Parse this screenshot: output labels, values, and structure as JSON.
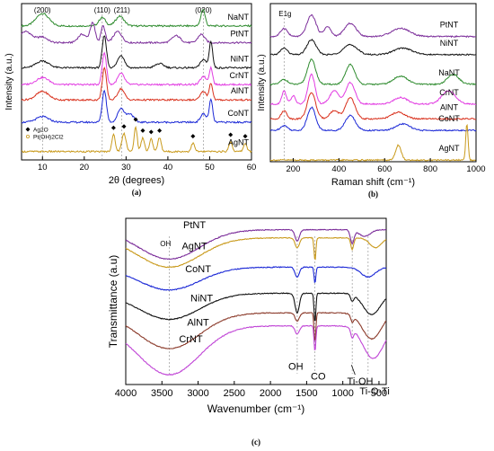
{
  "chart_data": [
    {
      "type": "line",
      "panel_label": "(a)",
      "xlabel": "2θ (degrees)",
      "ylabel": "Intensity (a.u.)",
      "xlim": [
        5,
        60
      ],
      "xticks": [
        10,
        20,
        30,
        40,
        50,
        60
      ],
      "peak_labels": [
        {
          "x": 10,
          "label": "(200)"
        },
        {
          "x": 24.3,
          "label": "(110)"
        },
        {
          "x": 29,
          "label": "(211)"
        },
        {
          "x": 48.5,
          "label": "(020)"
        }
      ],
      "legend": {
        "placement": "bottom-left",
        "entries": [
          "Ag2O",
          "Pt(OH)2Cl2"
        ]
      },
      "series": [
        {
          "name": "NaNT",
          "color": "#2e8b2e",
          "offset": 9.6,
          "peaks": [
            [
              10,
              0.9,
              1.5
            ],
            [
              24.3,
              0.6,
              0.8
            ],
            [
              28.5,
              0.7,
              1
            ],
            [
              48.4,
              1.2,
              0.5
            ]
          ]
        },
        {
          "name": "PtNT",
          "color": "#7b2d9a",
          "offset": 8.4,
          "peaks": [
            [
              6,
              0.8,
              1.5
            ],
            [
              10,
              0.4,
              1.2
            ],
            [
              19.5,
              0.6,
              1
            ],
            [
              22,
              1.4,
              0.6
            ],
            [
              24.5,
              1.2,
              0.5
            ],
            [
              28,
              0.8,
              1
            ],
            [
              42,
              0.5,
              1
            ],
            [
              48,
              0.6,
              0.8
            ]
          ]
        },
        {
          "name": "NiNT",
          "color": "#111111",
          "offset": 6.6,
          "peaks": [
            [
              10,
              0.5,
              1.5
            ],
            [
              24.8,
              2.3,
              0.5
            ],
            [
              28.8,
              0.9,
              0.8
            ],
            [
              38,
              0.3,
              1
            ],
            [
              48.5,
              0.6,
              0.7
            ],
            [
              50.3,
              1.9,
              0.4
            ]
          ]
        },
        {
          "name": "CrNT",
          "color": "#e23ce2",
          "offset": 5.4,
          "peaks": [
            [
              10,
              0.5,
              1.5
            ],
            [
              24.8,
              2.3,
              0.5
            ],
            [
              28.8,
              0.8,
              0.8
            ],
            [
              48.5,
              0.6,
              0.7
            ],
            [
              50.3,
              1.2,
              0.4
            ]
          ]
        },
        {
          "name": "AlNT",
          "color": "#d9301c",
          "offset": 4.3,
          "peaks": [
            [
              10,
              0.6,
              1.5
            ],
            [
              24.8,
              2.3,
              0.5
            ],
            [
              28.8,
              0.8,
              0.8
            ],
            [
              48.5,
              0.6,
              0.7
            ],
            [
              50.3,
              1.2,
              0.4
            ]
          ]
        },
        {
          "name": "CoNT",
          "color": "#1b28d6",
          "offset": 2.7,
          "peaks": [
            [
              10,
              0.4,
              1.5
            ],
            [
              24.8,
              2.3,
              0.5
            ],
            [
              28.8,
              1.0,
              0.8
            ],
            [
              31,
              0.6,
              0.8
            ],
            [
              48.5,
              0.6,
              0.7
            ],
            [
              50.3,
              1.6,
              0.4
            ]
          ]
        },
        {
          "name": "AgNT",
          "color": "#c99a1c",
          "offset": 0.6,
          "peaks": [
            [
              27,
              1.2,
              0.4
            ],
            [
              29.5,
              1.3,
              0.5
            ],
            [
              32.3,
              1.8,
              0.35
            ],
            [
              34,
              1.0,
              0.4
            ],
            [
              36,
              0.9,
              0.4
            ],
            [
              38,
              1.0,
              0.4
            ],
            [
              46,
              0.6,
              0.4
            ],
            [
              55,
              0.7,
              0.4
            ],
            [
              58.5,
              0.6,
              0.4
            ]
          ]
        }
      ]
    },
    {
      "type": "line",
      "panel_label": "(b)",
      "xlabel": "Raman shift (cm⁻¹)",
      "ylabel": "Intensity (a.u.)",
      "xlim": [
        100,
        1000
      ],
      "xticks": [
        200,
        400,
        600,
        800,
        1000
      ],
      "annotation": {
        "x": 160,
        "label": "E1g"
      },
      "series": [
        {
          "name": "PtNT",
          "color": "#7b2d9a",
          "offset": 7.6,
          "peaks": [
            [
              160,
              0.5,
              15
            ],
            [
              280,
              1.3,
              20
            ],
            [
              350,
              0.6,
              15
            ],
            [
              450,
              0.8,
              25
            ],
            [
              670,
              0.5,
              40
            ]
          ]
        },
        {
          "name": "NiNT",
          "color": "#111111",
          "offset": 6.5,
          "peaks": [
            [
              160,
              0.4,
              15
            ],
            [
              280,
              0.9,
              20
            ],
            [
              450,
              0.6,
              30
            ],
            [
              680,
              0.4,
              40
            ]
          ]
        },
        {
          "name": "NaNT",
          "color": "#2e8b2e",
          "offset": 4.7,
          "peaks": [
            [
              160,
              0.3,
              15
            ],
            [
              280,
              1.5,
              18
            ],
            [
              450,
              1.2,
              20
            ],
            [
              670,
              0.5,
              30
            ],
            [
              900,
              0.6,
              25
            ]
          ]
        },
        {
          "name": "CrNT",
          "color": "#e23ce2",
          "offset": 3.5,
          "peaks": [
            [
              160,
              0.8,
              10
            ],
            [
              200,
              0.5,
              10
            ],
            [
              280,
              1.8,
              15
            ],
            [
              380,
              0.8,
              20
            ],
            [
              450,
              1.3,
              20
            ],
            [
              670,
              0.4,
              30
            ],
            [
              880,
              0.8,
              30
            ]
          ]
        },
        {
          "name": "AlNT",
          "color": "#d9301c",
          "offset": 2.6,
          "peaks": [
            [
              160,
              0.5,
              12
            ],
            [
              280,
              1.6,
              18
            ],
            [
              380,
              0.5,
              20
            ],
            [
              450,
              1.3,
              20
            ],
            [
              660,
              0.4,
              30
            ]
          ]
        },
        {
          "name": "CoNT",
          "color": "#1b28d6",
          "offset": 1.9,
          "peaks": [
            [
              160,
              0.3,
              15
            ],
            [
              280,
              1.4,
              18
            ],
            [
              450,
              0.9,
              22
            ],
            [
              680,
              0.4,
              30
            ]
          ]
        },
        {
          "name": "AgNT",
          "color": "#c99a1c",
          "offset": 0.1,
          "peaks": [
            [
              660,
              0.9,
              12
            ],
            [
              960,
              2.2,
              5
            ]
          ]
        }
      ]
    },
    {
      "type": "line",
      "panel_label": "(c)",
      "xlabel": "Wavenumber (cm⁻¹)",
      "ylabel": "Transmittance (a.u)",
      "xlim": [
        4000,
        400
      ],
      "xticks": [
        4000,
        3500,
        3000,
        2500,
        2000,
        1500,
        1000,
        500
      ],
      "annotations": [
        {
          "x": 3500,
          "label": "OH"
        },
        {
          "x": 1630,
          "label": "OH"
        },
        {
          "x": 1385,
          "label": "CO"
        },
        {
          "x": 870,
          "label": "Ti-OH"
        },
        {
          "x": 560,
          "label": "Ti-O-Ti"
        }
      ],
      "reference_lines": [
        3400,
        1630,
        1385,
        870,
        650
      ],
      "series": [
        {
          "name": "PtNT",
          "color": "#7b2d9a",
          "base": 9.5,
          "offset": 0,
          "dips": [
            [
              3400,
              1.8,
              420
            ],
            [
              1630,
              0.7,
              30
            ],
            [
              870,
              0.8,
              25
            ],
            [
              700,
              0.4,
              80
            ]
          ]
        },
        {
          "name": "AgNT",
          "color": "#c99a1c",
          "base": 9.0,
          "offset": -0.8,
          "dips": [
            [
              3400,
              1.8,
              420
            ],
            [
              1630,
              0.6,
              30
            ],
            [
              1385,
              1.4,
              12
            ],
            [
              870,
              0.7,
              20
            ],
            [
              550,
              0.6,
              80
            ]
          ]
        },
        {
          "name": "CoNT",
          "color": "#1b28d6",
          "base": 7.2,
          "offset": -1.6,
          "dips": [
            [
              3400,
              1.4,
              420
            ],
            [
              1630,
              0.6,
              30
            ],
            [
              1385,
              1.0,
              12
            ],
            [
              650,
              0.6,
              100
            ]
          ]
        },
        {
          "name": "NiNT",
          "color": "#111111",
          "base": 5.6,
          "offset": -3.0,
          "dips": [
            [
              3400,
              1.6,
              420
            ],
            [
              1630,
              1.2,
              30
            ],
            [
              1385,
              1.8,
              12
            ],
            [
              870,
              0.4,
              20
            ],
            [
              600,
              1.3,
              120
            ]
          ]
        },
        {
          "name": "AlNT",
          "color": "#8b3a2a",
          "base": 4.4,
          "offset": -4.2,
          "dips": [
            [
              3400,
              2.2,
              420
            ],
            [
              1630,
              0.5,
              30
            ],
            [
              1385,
              1.8,
              12
            ],
            [
              870,
              0.4,
              20
            ],
            [
              600,
              1.6,
              130
            ]
          ]
        },
        {
          "name": "CrNT",
          "color": "#c045d6",
          "base": 3.6,
          "offset": -5.0,
          "dips": [
            [
              3400,
              3.0,
              420
            ],
            [
              1630,
              0.5,
              30
            ],
            [
              1385,
              1.6,
              12
            ],
            [
              870,
              0.5,
              20
            ],
            [
              580,
              2.0,
              140
            ]
          ]
        }
      ]
    }
  ]
}
